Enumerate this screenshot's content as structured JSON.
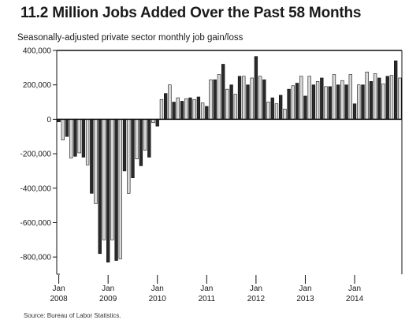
{
  "header": {
    "title": "11.2 Million Jobs Added Over the Past 58 Months",
    "subtitle": "Seasonally-adjusted private sector monthly job gain/loss",
    "source": "Source: Bureau of Labor Statistics."
  },
  "colors": {
    "dark_bar": "#2a2a2a",
    "light_bar": "#d9d9d9",
    "stroke": "#111111",
    "axis": "#111111"
  },
  "chart_data": {
    "type": "bar",
    "title": "11.2 Million Jobs Added Over the Past 58 Months",
    "subtitle": "Seasonally-adjusted private sector monthly job gain/loss",
    "ylim": [
      -900000,
      400000
    ],
    "y_ticks": [
      400000,
      200000,
      0,
      -200000,
      -400000,
      -600000,
      -800000
    ],
    "y_tick_labels": [
      "400,000",
      "200,000",
      "0",
      "-200,000",
      "-400,000",
      "-600,000",
      "-800,000"
    ],
    "x_ticks": [
      {
        "index": 0,
        "month": "Jan",
        "year": "2008"
      },
      {
        "index": 12,
        "month": "Jan",
        "year": "2009"
      },
      {
        "index": 24,
        "month": "Jan",
        "year": "2010"
      },
      {
        "index": 36,
        "month": "Jan",
        "year": "2011"
      },
      {
        "index": 48,
        "month": "Jan",
        "year": "2012"
      },
      {
        "index": 60,
        "month": "Jan",
        "year": "2013"
      },
      {
        "index": 72,
        "month": "Jan",
        "year": "2014"
      }
    ],
    "grid": false,
    "start": "Jan 2008",
    "series": [
      {
        "values": [
          -15000,
          -120000,
          -100000,
          -225000,
          -215000,
          -195000,
          -220000,
          -265000,
          -430000,
          -490000,
          -780000,
          -700000,
          -830000,
          -700000,
          -820000,
          -810000,
          -300000,
          -430000,
          -340000,
          -230000,
          -270000,
          -180000,
          -220000,
          -20000,
          -40000,
          115000,
          150000,
          200000,
          100000,
          125000,
          105000,
          120000,
          125000,
          115000,
          130000,
          95000,
          75000,
          230000,
          230000,
          260000,
          320000,
          175000,
          200000,
          145000,
          250000,
          250000,
          200000,
          240000,
          365000,
          250000,
          230000,
          100000,
          125000,
          90000,
          140000,
          60000,
          175000,
          195000,
          210000,
          250000,
          135000,
          250000,
          200000,
          220000,
          240000,
          190000,
          190000,
          260000,
          200000,
          225000,
          200000,
          260000,
          90000,
          200000,
          200000,
          275000,
          220000,
          265000,
          240000,
          205000,
          250000,
          255000,
          340000,
          240000
        ]
      }
    ]
  }
}
